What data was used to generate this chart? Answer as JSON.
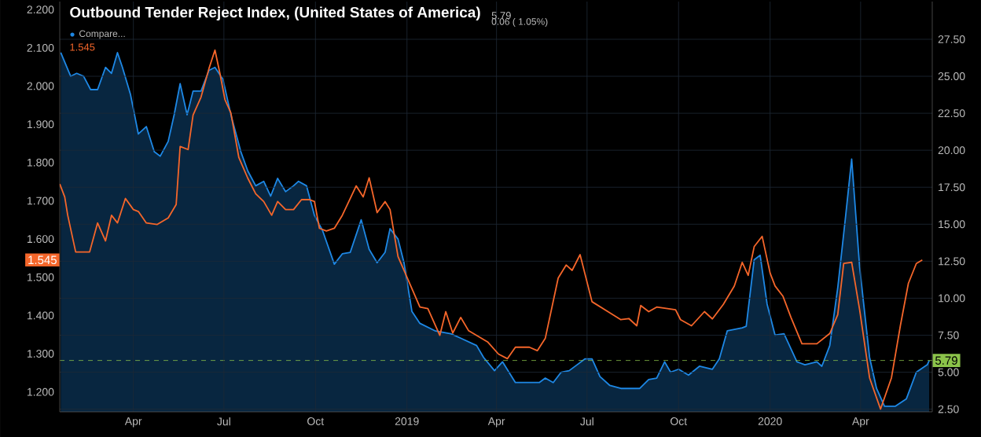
{
  "chart_data": {
    "type": "line",
    "title": "Outbound Tender Reject Index, (United States of America)",
    "xlim": [
      "2018-01-17",
      "2020-06-12"
    ],
    "xticks": [
      {
        "value": "2018-04-01",
        "label": "Apr"
      },
      {
        "value": "2018-07-01",
        "label": "Jul"
      },
      {
        "value": "2018-10-01",
        "label": "Oct"
      },
      {
        "value": "2019-01-01",
        "label": "2019"
      },
      {
        "value": "2019-04-01",
        "label": "Apr"
      },
      {
        "value": "2019-07-01",
        "label": "Jul"
      },
      {
        "value": "2019-10-01",
        "label": "Oct"
      },
      {
        "value": "2020-01-01",
        "label": "2020"
      },
      {
        "value": "2020-04-01",
        "label": "Apr"
      }
    ],
    "ylim": [
      1.148,
      2.221
    ],
    "yticks": [
      {
        "value": 1.2,
        "label": "1.200"
      },
      {
        "value": 1.3,
        "label": "1.300"
      },
      {
        "value": 1.4,
        "label": "1.400"
      },
      {
        "value": 1.5,
        "label": "1.500"
      },
      {
        "value": 1.6,
        "label": "1.600"
      },
      {
        "value": 1.7,
        "label": "1.700"
      },
      {
        "value": 1.8,
        "label": "1.800"
      },
      {
        "value": 1.9,
        "label": "1.900"
      },
      {
        "value": 2.0,
        "label": "2.000"
      },
      {
        "value": 2.1,
        "label": "2.100"
      },
      {
        "value": 2.2,
        "label": "2.200"
      }
    ],
    "y2lim": [
      2.32,
      30.05
    ],
    "y2ticks": [
      {
        "value": 2.5,
        "label": "2.50"
      },
      {
        "value": 5,
        "label": "5.00"
      },
      {
        "value": 7.5,
        "label": "7.50"
      },
      {
        "value": 10,
        "label": "10.00"
      },
      {
        "value": 12.5,
        "label": "12.50"
      },
      {
        "value": 15,
        "label": "15.00"
      },
      {
        "value": 17.5,
        "label": "17.50"
      },
      {
        "value": 20,
        "label": "20.00"
      },
      {
        "value": 22.5,
        "label": "22.50"
      },
      {
        "value": 25,
        "label": "25.00"
      },
      {
        "value": 27.5,
        "label": "27.50"
      }
    ],
    "grid": true,
    "legend": "top left",
    "series": [
      {
        "name": "Compare...",
        "type": "area",
        "axis": "y2",
        "color": "#1e88e5",
        "x": [
          "2018-01-18",
          "2018-01-28",
          "2018-02-03",
          "2018-02-10",
          "2018-02-17",
          "2018-02-24",
          "2018-03-04",
          "2018-03-10",
          "2018-03-16",
          "2018-03-21",
          "2018-03-29",
          "2018-04-06",
          "2018-04-14",
          "2018-04-22",
          "2018-04-28",
          "2018-05-06",
          "2018-05-12",
          "2018-05-18",
          "2018-05-25",
          "2018-05-31",
          "2018-06-08",
          "2018-06-16",
          "2018-06-22",
          "2018-06-30",
          "2018-07-08",
          "2018-07-18",
          "2018-07-25",
          "2018-08-02",
          "2018-08-10",
          "2018-08-17",
          "2018-08-24",
          "2018-09-01",
          "2018-09-09",
          "2018-09-14",
          "2018-09-22",
          "2018-09-30",
          "2018-10-08",
          "2018-10-20",
          "2018-10-28",
          "2018-11-05",
          "2018-11-16",
          "2018-11-24",
          "2018-12-02",
          "2018-12-10",
          "2018-12-15",
          "2018-12-23",
          "2018-12-29",
          "2019-01-06",
          "2019-01-14",
          "2019-01-29",
          "2019-02-14",
          "2019-02-24",
          "2019-03-12",
          "2019-03-19",
          "2019-03-30",
          "2019-04-07",
          "2019-04-20",
          "2019-05-04",
          "2019-05-14",
          "2019-05-20",
          "2019-05-28",
          "2019-06-05",
          "2019-06-13",
          "2019-06-21",
          "2019-06-29",
          "2019-07-06",
          "2019-07-14",
          "2019-07-24",
          "2019-08-04",
          "2019-08-23",
          "2019-09-01",
          "2019-09-09",
          "2019-09-17",
          "2019-09-23",
          "2019-10-01",
          "2019-10-11",
          "2019-10-22",
          "2019-11-04",
          "2019-11-11",
          "2019-11-19",
          "2019-12-04",
          "2019-12-08",
          "2019-12-16",
          "2019-12-22",
          "2019-12-29",
          "2020-01-06",
          "2020-01-15",
          "2020-01-28",
          "2020-02-05",
          "2020-02-17",
          "2020-02-22",
          "2020-03-01",
          "2020-03-09",
          "2020-03-17",
          "2020-03-23",
          "2020-03-31",
          "2020-04-10",
          "2020-04-17",
          "2020-04-25",
          "2020-05-06",
          "2020-05-17",
          "2020-05-27",
          "2020-06-07",
          "2020-06-09"
        ],
        "values": [
          26.6,
          25.0,
          25.2,
          25.0,
          24.1,
          24.1,
          25.6,
          25.2,
          26.6,
          25.6,
          23.8,
          21.1,
          21.6,
          19.9,
          19.6,
          20.6,
          22.4,
          24.5,
          22.4,
          24.0,
          24.0,
          25.4,
          25.6,
          24.8,
          22.4,
          19.9,
          18.6,
          17.6,
          17.9,
          16.9,
          18.1,
          17.2,
          17.6,
          17.9,
          17.6,
          15.6,
          14.6,
          12.3,
          13.0,
          13.1,
          15.3,
          13.3,
          12.4,
          13.1,
          14.7,
          14.0,
          12.4,
          9.1,
          8.3,
          7.8,
          7.6,
          7.3,
          6.8,
          6.0,
          5.1,
          5.7,
          4.3,
          4.3,
          4.3,
          4.6,
          4.3,
          5.0,
          5.1,
          5.5,
          5.9,
          5.9,
          4.7,
          4.1,
          3.9,
          3.9,
          4.5,
          4.6,
          5.7,
          5.0,
          5.2,
          4.8,
          5.4,
          5.2,
          5.9,
          7.8,
          8.0,
          8.1,
          12.6,
          12.9,
          9.6,
          7.5,
          7.6,
          5.7,
          5.5,
          5.7,
          5.4,
          6.8,
          10.7,
          15.6,
          19.4,
          12.1,
          6.0,
          3.9,
          2.7,
          2.7,
          3.2,
          5.0,
          5.5,
          5.79
        ]
      },
      {
        "color": "#f5662a",
        "x": [
          "2018-01-17",
          "2018-01-22",
          "2018-01-25",
          "2018-02-02",
          "2018-02-16",
          "2018-02-24",
          "2018-03-04",
          "2018-03-10",
          "2018-03-16",
          "2018-03-24",
          "2018-04-01",
          "2018-04-06",
          "2018-04-14",
          "2018-04-25",
          "2018-05-06",
          "2018-05-14",
          "2018-05-18",
          "2018-05-26",
          "2018-05-31",
          "2018-06-08",
          "2018-06-16",
          "2018-06-22",
          "2018-06-27",
          "2018-07-02",
          "2018-07-08",
          "2018-07-16",
          "2018-07-25",
          "2018-08-02",
          "2018-08-10",
          "2018-08-18",
          "2018-08-24",
          "2018-09-01",
          "2018-09-09",
          "2018-09-17",
          "2018-09-25",
          "2018-09-30",
          "2018-10-05",
          "2018-10-12",
          "2018-10-20",
          "2018-10-28",
          "2018-11-11",
          "2018-11-18",
          "2018-11-24",
          "2018-12-02",
          "2018-12-10",
          "2018-12-15",
          "2018-12-23",
          "2019-01-14",
          "2019-01-22",
          "2019-02-03",
          "2019-02-09",
          "2019-02-16",
          "2019-02-24",
          "2019-03-04",
          "2019-03-23",
          "2019-04-03",
          "2019-04-12",
          "2019-04-20",
          "2019-05-04",
          "2019-05-12",
          "2019-05-20",
          "2019-06-02",
          "2019-06-10",
          "2019-06-16",
          "2019-06-24",
          "2019-07-06",
          "2019-07-22",
          "2019-08-04",
          "2019-08-12",
          "2019-08-20",
          "2019-08-24",
          "2019-09-01",
          "2019-09-09",
          "2019-09-28",
          "2019-10-03",
          "2019-10-14",
          "2019-10-27",
          "2019-11-04",
          "2019-11-15",
          "2019-11-26",
          "2019-12-04",
          "2019-12-10",
          "2019-12-16",
          "2019-12-24",
          "2020-01-01",
          "2020-01-06",
          "2020-01-14",
          "2020-01-22",
          "2020-02-02",
          "2020-02-17",
          "2020-03-01",
          "2020-03-09",
          "2020-03-15",
          "2020-03-23",
          "2020-03-31",
          "2020-04-10",
          "2020-04-21",
          "2020-05-02",
          "2020-05-11",
          "2020-05-19",
          "2020-05-27",
          "2020-06-02"
        ],
        "values": [
          1.744,
          1.71,
          1.662,
          1.566,
          1.566,
          1.642,
          1.595,
          1.662,
          1.642,
          1.706,
          1.677,
          1.672,
          1.642,
          1.638,
          1.655,
          1.69,
          1.842,
          1.834,
          1.924,
          1.971,
          2.046,
          2.094,
          2.033,
          1.965,
          1.93,
          1.813,
          1.759,
          1.718,
          1.698,
          1.662,
          1.698,
          1.677,
          1.677,
          1.703,
          1.703,
          1.698,
          1.628,
          1.621,
          1.628,
          1.662,
          1.739,
          1.71,
          1.76,
          1.669,
          1.698,
          1.677,
          1.554,
          1.422,
          1.418,
          1.348,
          1.41,
          1.354,
          1.395,
          1.36,
          1.331,
          1.299,
          1.287,
          1.317,
          1.317,
          1.308,
          1.34,
          1.498,
          1.532,
          1.518,
          1.559,
          1.436,
          1.41,
          1.389,
          1.392,
          1.373,
          1.426,
          1.41,
          1.422,
          1.415,
          1.389,
          1.373,
          1.41,
          1.391,
          1.429,
          1.477,
          1.539,
          1.505,
          1.58,
          1.607,
          1.511,
          1.477,
          1.45,
          1.395,
          1.326,
          1.326,
          1.353,
          1.402,
          1.536,
          1.539,
          1.415,
          1.237,
          1.155,
          1.237,
          1.374,
          1.484,
          1.536,
          1.545
        ]
      }
    ],
    "ref_lines": [
      {
        "axis": "y2",
        "value": 5.79,
        "label": "5.79",
        "color": "#8bc34a",
        "line_style": "dashed"
      }
    ],
    "annotations": [
      "5.79",
      "0.06 ( 1.05%)",
      "1.545",
      {
        "text": "1.545",
        "y": 1.545
      }
    ]
  }
}
